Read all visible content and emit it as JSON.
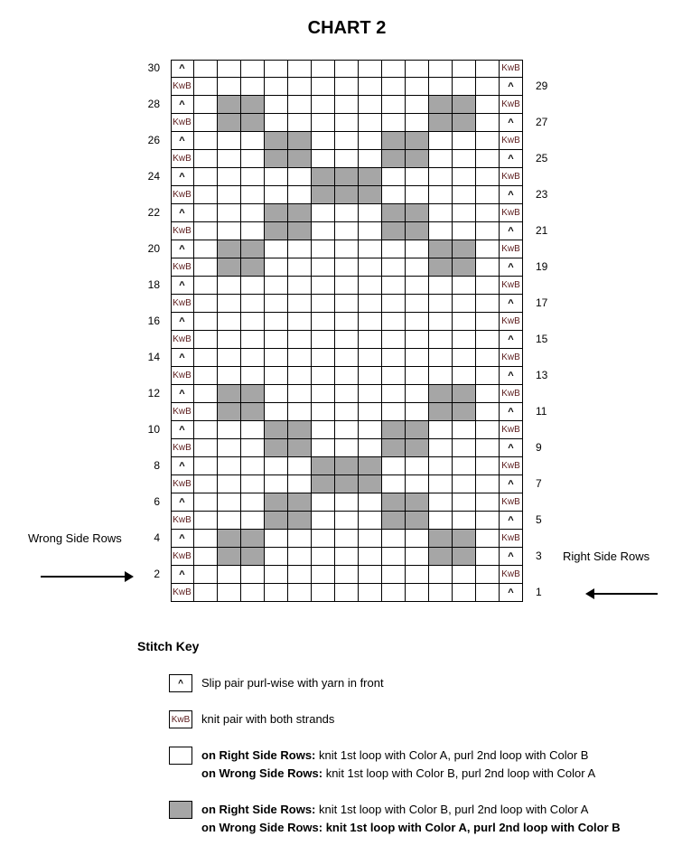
{
  "title": "CHART 2",
  "symbols": {
    "slip": "^",
    "kwb": "KwB"
  },
  "colors": {
    "shaded": "#a6a6a6",
    "kwb_text": "#5a1a1a"
  },
  "columns": 15,
  "rows": [
    {
      "row": 30,
      "shaded": []
    },
    {
      "row": 29,
      "shaded": []
    },
    {
      "row": 28,
      "shaded": [
        3,
        4,
        12,
        13
      ]
    },
    {
      "row": 27,
      "shaded": [
        3,
        4,
        12,
        13
      ]
    },
    {
      "row": 26,
      "shaded": [
        5,
        6,
        10,
        11
      ]
    },
    {
      "row": 25,
      "shaded": [
        5,
        6,
        10,
        11
      ]
    },
    {
      "row": 24,
      "shaded": [
        7,
        8,
        9
      ]
    },
    {
      "row": 23,
      "shaded": [
        7,
        8,
        9
      ]
    },
    {
      "row": 22,
      "shaded": [
        5,
        6,
        10,
        11
      ]
    },
    {
      "row": 21,
      "shaded": [
        5,
        6,
        10,
        11
      ]
    },
    {
      "row": 20,
      "shaded": [
        3,
        4,
        12,
        13
      ]
    },
    {
      "row": 19,
      "shaded": [
        3,
        4,
        12,
        13
      ]
    },
    {
      "row": 18,
      "shaded": []
    },
    {
      "row": 17,
      "shaded": []
    },
    {
      "row": 16,
      "shaded": []
    },
    {
      "row": 15,
      "shaded": []
    },
    {
      "row": 14,
      "shaded": []
    },
    {
      "row": 13,
      "shaded": []
    },
    {
      "row": 12,
      "shaded": [
        3,
        4,
        12,
        13
      ]
    },
    {
      "row": 11,
      "shaded": [
        3,
        4,
        12,
        13
      ]
    },
    {
      "row": 10,
      "shaded": [
        5,
        6,
        10,
        11
      ]
    },
    {
      "row": 9,
      "shaded": [
        5,
        6,
        10,
        11
      ]
    },
    {
      "row": 8,
      "shaded": [
        7,
        8,
        9
      ]
    },
    {
      "row": 7,
      "shaded": [
        7,
        8,
        9
      ]
    },
    {
      "row": 6,
      "shaded": [
        5,
        6,
        10,
        11
      ]
    },
    {
      "row": 5,
      "shaded": [
        5,
        6,
        10,
        11
      ]
    },
    {
      "row": 4,
      "shaded": [
        3,
        4,
        12,
        13
      ]
    },
    {
      "row": 3,
      "shaded": [
        3,
        4,
        12,
        13
      ]
    },
    {
      "row": 2,
      "shaded": []
    },
    {
      "row": 1,
      "shaded": []
    }
  ],
  "labels": {
    "wrong_side": "Wrong Side Rows",
    "right_side": "Right Side Rows"
  },
  "key": {
    "title": "Stitch Key",
    "slip": "Slip pair purl-wise with yarn in front",
    "kwb": "knit pair with both strands",
    "white_rs_label": "on Right Side Rows:",
    "white_rs_text": " knit 1st loop with Color A, purl 2nd loop with Color B",
    "white_ws_label": "on Wrong Side Rows:",
    "white_ws_text": " knit 1st loop with Color B, purl 2nd loop with Color A",
    "grey_rs_label": "on Right Side Rows:",
    "grey_rs_text": " knit 1st loop with Color B, purl 2nd loop with Color A",
    "grey_ws_label": "on Wrong Side Rows: knit 1st loop with Color A, purl 2nd loop with Color B"
  }
}
